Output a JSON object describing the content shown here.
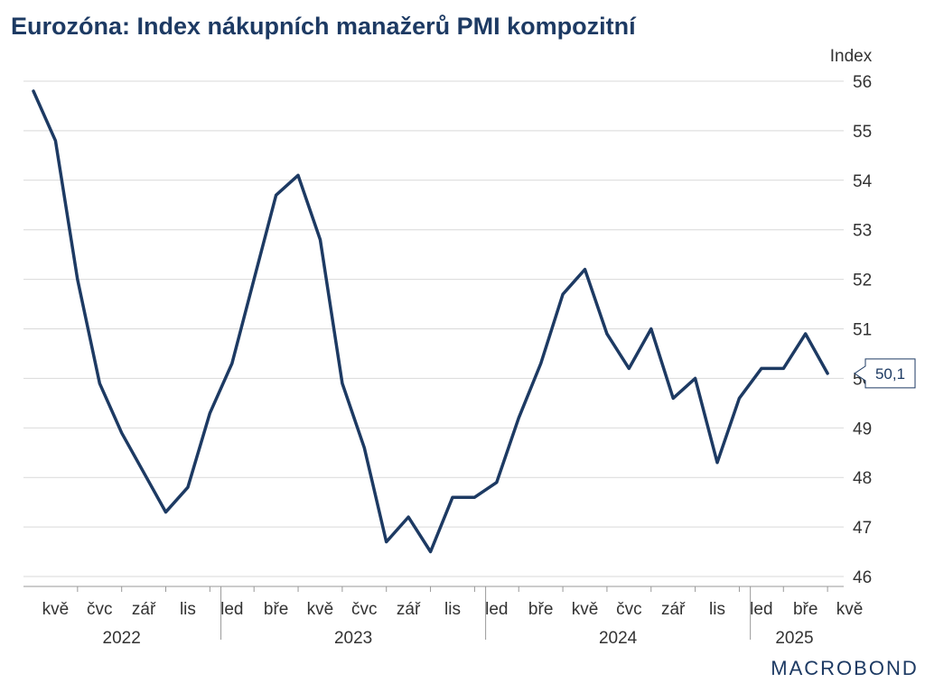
{
  "page": {
    "title": "Eurozóna: Index nákupních manažerů PMI kompozitní",
    "brand": "MACROBOND"
  },
  "colors": {
    "line": "#1d3a63",
    "grid": "#d9d9d9",
    "title": "#1d3a63",
    "axis": "#999999"
  },
  "chart_data": {
    "type": "line",
    "title": "Eurozóna: Index nákupních manažerů PMI kompozitní",
    "ylabel": "Index",
    "xlabel": "",
    "ylim": [
      46,
      56
    ],
    "y_ticks": [
      46,
      47,
      48,
      49,
      50,
      51,
      52,
      53,
      54,
      55,
      56
    ],
    "y_axis_position": "right",
    "grid": true,
    "x_tick_labels": [
      "kvě",
      "čvc",
      "zář",
      "lis",
      "led",
      "bře",
      "kvě",
      "čvc",
      "zář",
      "lis",
      "led",
      "bře",
      "kvě",
      "čvc",
      "zář",
      "lis",
      "led",
      "bře",
      "kvě"
    ],
    "year_labels": [
      "2022",
      "2023",
      "2024",
      "2025"
    ],
    "series": [
      {
        "x": [
          "2022-04",
          "2022-05",
          "2022-06",
          "2022-07",
          "2022-08",
          "2022-09",
          "2022-10",
          "2022-11",
          "2022-12",
          "2023-01",
          "2023-02",
          "2023-03",
          "2023-04",
          "2023-05",
          "2023-06",
          "2023-07",
          "2023-08",
          "2023-09",
          "2023-10",
          "2023-11",
          "2023-12",
          "2024-01",
          "2024-02",
          "2024-03",
          "2024-04",
          "2024-05",
          "2024-06",
          "2024-07",
          "2024-08",
          "2024-09",
          "2024-10",
          "2024-11",
          "2024-12",
          "2025-01",
          "2025-02",
          "2025-03",
          "2025-04"
        ],
        "values": [
          55.8,
          54.8,
          52.0,
          49.9,
          48.9,
          48.1,
          47.3,
          47.8,
          49.3,
          50.3,
          52.0,
          53.7,
          54.1,
          52.8,
          49.9,
          48.6,
          46.7,
          47.2,
          46.5,
          47.6,
          47.6,
          47.9,
          49.2,
          50.3,
          51.7,
          52.2,
          50.9,
          50.2,
          51.0,
          49.6,
          50.0,
          48.3,
          49.6,
          50.2,
          50.2,
          50.9,
          50.1
        ]
      }
    ],
    "last_value_label": "50,1"
  }
}
